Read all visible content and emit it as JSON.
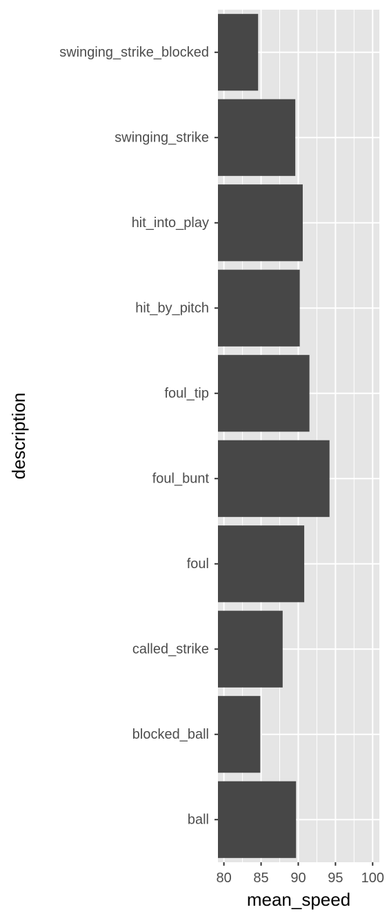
{
  "chart_data": {
    "type": "bar",
    "orientation": "horizontal",
    "xlabel": "mean_speed",
    "ylabel": "description",
    "categories": [
      "swinging_strike_blocked",
      "swinging_strike",
      "hit_into_play",
      "hit_by_pitch",
      "foul_tip",
      "foul_bunt",
      "foul",
      "called_strike",
      "blocked_ball",
      "ball"
    ],
    "values": [
      84.6,
      89.6,
      90.6,
      90.2,
      91.5,
      94.2,
      90.8,
      87.9,
      84.9,
      89.7
    ],
    "xlim": [
      79.2,
      100.9
    ],
    "x_ticks": [
      80,
      85,
      90,
      95,
      100
    ],
    "grid": true,
    "legend": "none",
    "colors": {
      "bar": "#474747",
      "panel_background": "#e5e5e5",
      "grid": "#ffffff",
      "tick_label": "#4d4d4d",
      "tick_mark": "#333333"
    }
  }
}
